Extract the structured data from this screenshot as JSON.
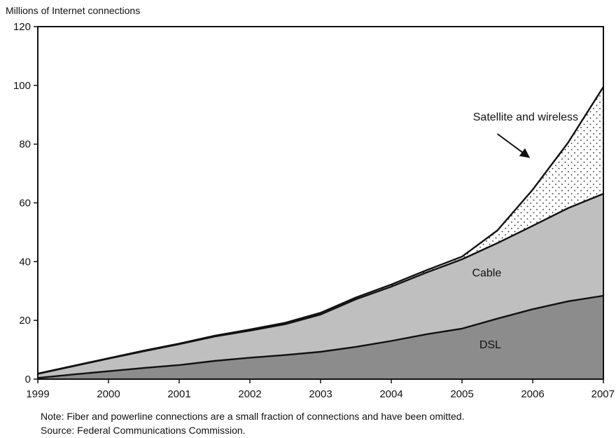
{
  "chart_data": {
    "type": "area",
    "stacked": true,
    "ylabel": "Millions of Internet connections",
    "xlabel": "",
    "x": [
      1999,
      1999.5,
      2000,
      2000.5,
      2001,
      2001.5,
      2002,
      2002.5,
      2003,
      2003.5,
      2004,
      2004.5,
      2005,
      2005.5,
      2006,
      2006.5,
      2007
    ],
    "xlim": [
      1999,
      2007
    ],
    "ylim": [
      0,
      120
    ],
    "x_ticks": [
      "1999",
      "2000",
      "2001",
      "2002",
      "2003",
      "2004",
      "2005",
      "2006",
      "2007"
    ],
    "y_ticks": [
      "0",
      "20",
      "40",
      "60",
      "80",
      "100",
      "120"
    ],
    "grid": false,
    "series": [
      {
        "name": "DSL",
        "values": [
          0.4,
          1.6,
          2.7,
          3.8,
          4.8,
          6.2,
          7.3,
          8.2,
          9.3,
          11.0,
          13.0,
          15.3,
          17.2,
          20.6,
          23.8,
          26.5,
          28.4
        ]
      },
      {
        "name": "Cable",
        "values": [
          1.4,
          2.8,
          4.3,
          5.7,
          7.1,
          8.3,
          9.2,
          10.5,
          12.7,
          16.2,
          18.5,
          21.0,
          23.6,
          25.7,
          28.4,
          31.7,
          34.7
        ]
      },
      {
        "name": "Satellite and wireless",
        "values": [
          0.1,
          0.1,
          0.1,
          0.2,
          0.2,
          0.3,
          0.4,
          0.5,
          0.6,
          0.6,
          0.7,
          0.8,
          0.9,
          4.3,
          12.3,
          22.3,
          36.4
        ]
      }
    ],
    "fills": {
      "DSL": "#8c8c8c",
      "Cable": "#bfbfbf",
      "Satellite and wireless": "#ffffff"
    },
    "annotation": "Satellite and wireless"
  },
  "notes": {
    "note": "Note: Fiber and powerline connections are a small fraction of connections and have been omitted.",
    "source": "Source: Federal Communications Commission."
  }
}
